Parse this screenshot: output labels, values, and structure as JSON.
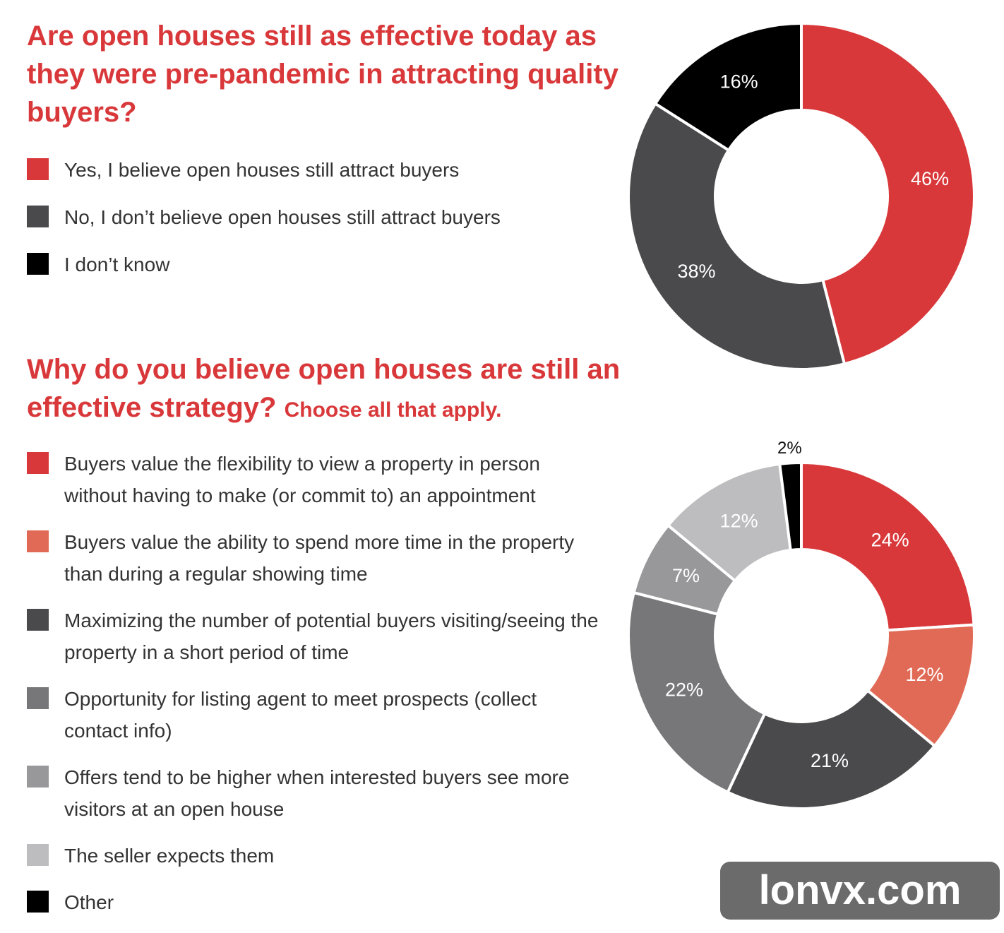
{
  "chart_data": [
    {
      "type": "donut",
      "title": "Are open houses still as effective today as they were pre-pandemic in attracting quality buyers?",
      "categories": [
        "Yes, I believe open houses still attract buyers",
        "No, I don’t believe open houses still attract buyers",
        "I don’t know"
      ],
      "values": [
        46,
        38,
        16
      ],
      "value_labels": [
        "46%",
        "38%",
        "16%"
      ],
      "colors": [
        "#d9383a",
        "#4a4a4c",
        "#000000"
      ]
    },
    {
      "type": "donut",
      "title": "Why do you believe open houses are still an effective strategy?",
      "subtitle": "Choose all that apply.",
      "categories": [
        "Buyers value the flexibility to view a property in person without having to make (or commit to) an appointment",
        "Buyers value the ability to spend more time in the property than during a regular showing time",
        "Maximizing the number of potential buyers visiting/seeing the property in a short period of time",
        "Opportunity for listing agent to meet prospects (collect contact info)",
        "Offers tend to be higher when interested buyers see more visitors at an open house",
        "The seller expects them",
        "Other"
      ],
      "values": [
        24,
        12,
        21,
        22,
        7,
        12,
        2
      ],
      "value_labels": [
        "24%",
        "12%",
        "21%",
        "22%",
        "7%",
        "12%",
        "2%"
      ],
      "colors": [
        "#d9383a",
        "#e06a55",
        "#4a4a4c",
        "#77777a",
        "#98989b",
        "#bdbdc0",
        "#000000"
      ]
    }
  ],
  "watermark": "lonvx.com"
}
